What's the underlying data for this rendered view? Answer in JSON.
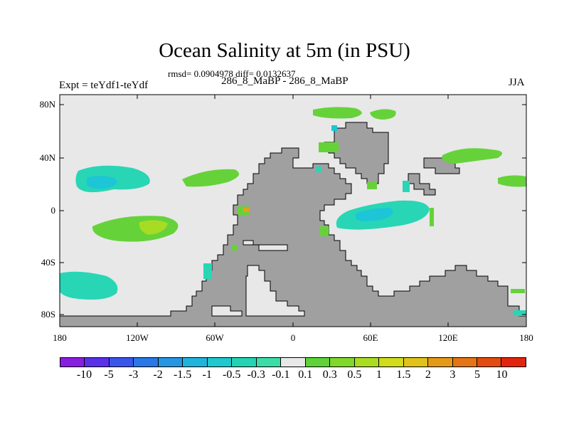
{
  "title": "Ocean Salinity at 5m (in PSU)",
  "stats": "rmsd= 0.0904978 diff= 0.0132637",
  "experiment": "Expt = teYdf1-teYdf",
  "runs": "286_8_MaBP - 286_8_MaBP",
  "season": "JJA",
  "lat_labels": [
    "80N",
    "40N",
    "0",
    "40S",
    "80S"
  ],
  "lon_labels": [
    "180",
    "120W",
    "60W",
    "0",
    "60E",
    "120E",
    "180"
  ],
  "colorbar": {
    "labels": [
      "-10",
      "-5",
      "-3",
      "-2",
      "-1.5",
      "-1",
      "-0.5",
      "-0.3",
      "-0.1",
      "0.1",
      "0.3",
      "0.5",
      "1",
      "1.5",
      "2",
      "3",
      "5",
      "10"
    ],
    "colors": [
      "#8a1ee0",
      "#5a30e8",
      "#3a55ea",
      "#2a78e6",
      "#2696e2",
      "#20b4dc",
      "#1ec8cc",
      "#22d4b4",
      "#3cdca8",
      "#e8e8e8",
      "#5ed238",
      "#80d82c",
      "#aadc22",
      "#d0dc1c",
      "#e0c21a",
      "#e49a18",
      "#e47414",
      "#e24c10",
      "#e0260e"
    ]
  },
  "colors": {
    "ocean_background": "#e8e8e8",
    "land": "#a0a0a0",
    "neg_anomaly_small": "#28d6b6",
    "neg_anomaly_medium": "#1cc6d6",
    "neg_anomaly_large": "#1ca6e0",
    "pos_anomaly_small": "#66d23a",
    "pos_anomaly_medium": "#a6dc24"
  }
}
